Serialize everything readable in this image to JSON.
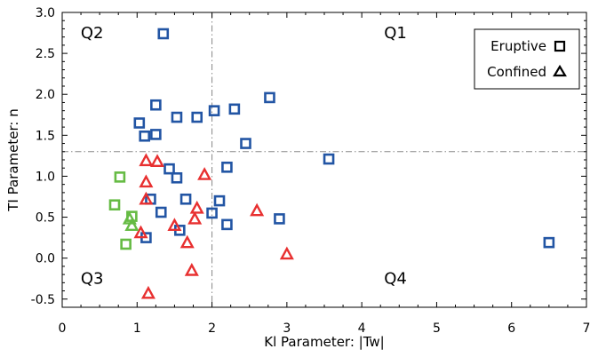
{
  "chart_data": {
    "type": "scatter",
    "xlabel": "Kl Parameter: |Tw|",
    "ylabel": "TI Parameter: n",
    "xlim": [
      0,
      7
    ],
    "ylim": [
      -0.6,
      3.0
    ],
    "x_ticks": [
      0,
      1,
      2,
      3,
      4,
      5,
      6,
      7
    ],
    "y_ticks": [
      -0.5,
      0.0,
      0.5,
      1.0,
      1.5,
      2.0,
      2.5,
      3.0
    ],
    "x_tick_labels": [
      "0",
      "1",
      "2",
      "3",
      "4",
      "5",
      "6",
      "7"
    ],
    "y_tick_labels": [
      "-0.5",
      "0.0",
      "0.5",
      "1.0",
      "1.5",
      "2.0",
      "2.5",
      "3.0"
    ],
    "ref_lines": {
      "x": 2.0,
      "y": 1.3
    },
    "quadrant_labels": [
      {
        "text": "Q2",
        "x": 0.4,
        "y": 2.75
      },
      {
        "text": "Q1",
        "x": 4.45,
        "y": 2.75
      },
      {
        "text": "Q3",
        "x": 0.4,
        "y": -0.25
      },
      {
        "text": "Q4",
        "x": 4.45,
        "y": -0.25
      }
    ],
    "legend": {
      "position": "top-right",
      "entries": [
        {
          "label": "Eruptive",
          "marker": "square"
        },
        {
          "label": "Confined",
          "marker": "triangle"
        }
      ]
    },
    "series": [
      {
        "name": "Eruptive (blue)",
        "marker": "square",
        "color": "#2255a4",
        "points": [
          [
            1.35,
            2.74
          ],
          [
            1.25,
            1.87
          ],
          [
            1.03,
            1.65
          ],
          [
            1.1,
            1.49
          ],
          [
            1.25,
            1.51
          ],
          [
            1.53,
            1.72
          ],
          [
            1.8,
            1.72
          ],
          [
            2.03,
            1.8
          ],
          [
            2.3,
            1.82
          ],
          [
            2.77,
            1.96
          ],
          [
            2.45,
            1.4
          ],
          [
            3.56,
            1.21
          ],
          [
            2.2,
            1.11
          ],
          [
            1.43,
            1.09
          ],
          [
            1.53,
            0.98
          ],
          [
            1.18,
            0.72
          ],
          [
            1.65,
            0.72
          ],
          [
            2.1,
            0.7
          ],
          [
            1.32,
            0.56
          ],
          [
            2.0,
            0.55
          ],
          [
            2.9,
            0.48
          ],
          [
            2.2,
            0.41
          ],
          [
            1.57,
            0.34
          ],
          [
            1.12,
            0.25
          ],
          [
            6.5,
            0.19
          ]
        ]
      },
      {
        "name": "Eruptive (green)",
        "marker": "square",
        "color": "#66bb44",
        "points": [
          [
            0.77,
            0.99
          ],
          [
            0.7,
            0.65
          ],
          [
            0.93,
            0.51
          ],
          [
            0.85,
            0.17
          ]
        ]
      },
      {
        "name": "Confined (red)",
        "marker": "triangle",
        "color": "#e83030",
        "points": [
          [
            1.12,
            1.19
          ],
          [
            1.27,
            1.18
          ],
          [
            1.12,
            0.93
          ],
          [
            1.9,
            1.02
          ],
          [
            1.12,
            0.72
          ],
          [
            1.8,
            0.61
          ],
          [
            2.6,
            0.58
          ],
          [
            1.77,
            0.48
          ],
          [
            1.5,
            0.4
          ],
          [
            1.05,
            0.31
          ],
          [
            1.67,
            0.19
          ],
          [
            3.0,
            0.05
          ],
          [
            1.73,
            -0.15
          ],
          [
            1.15,
            -0.43
          ]
        ]
      },
      {
        "name": "Confined (green)",
        "marker": "triangle",
        "color": "#66bb44",
        "points": [
          [
            0.9,
            0.48
          ],
          [
            0.93,
            0.4
          ]
        ]
      }
    ]
  }
}
